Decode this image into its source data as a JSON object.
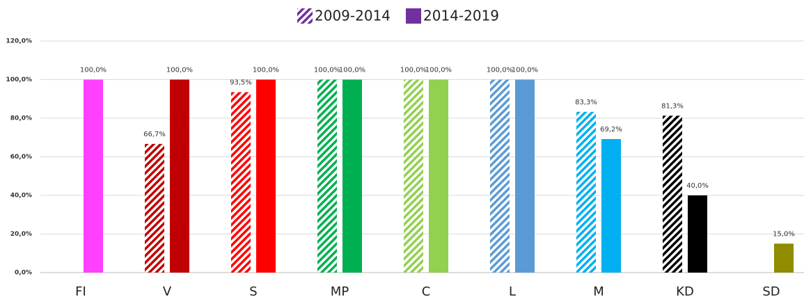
{
  "chart_data": {
    "type": "bar",
    "categories": [
      "FI",
      "V",
      "S",
      "MP",
      "C",
      "L",
      "M",
      "KD",
      "SD"
    ],
    "colors": [
      "#ff40ff",
      "#c00000",
      "#ff0000",
      "#00b050",
      "#92d050",
      "#5b9bd5",
      "#00b0f0",
      "#000000",
      "#8f8c00"
    ],
    "series": [
      {
        "name": "2009-2014",
        "color": "#7030a0",
        "hatched": true,
        "values": [
          null,
          66.7,
          93.5,
          100,
          100,
          100,
          83.3,
          81.3,
          null
        ],
        "value_labels": [
          null,
          "66,7%",
          "93,5%",
          "100,0%",
          "100,0%",
          "100,0%",
          "83,3%",
          "81,3%",
          null
        ]
      },
      {
        "name": "2014-2019",
        "color": "#7030a0",
        "hatched": false,
        "values": [
          100,
          100,
          100,
          100,
          100,
          100,
          69.2,
          40,
          15
        ],
        "value_labels": [
          "100,0%",
          "100,0%",
          "100,0%",
          "100,0%",
          "100,0%",
          "100,0%",
          "69,2%",
          "40,0%",
          "15,0%"
        ]
      }
    ],
    "ylim": [
      0,
      120
    ],
    "yticks": [
      {
        "value": 0,
        "label": "0,0%"
      },
      {
        "value": 20,
        "label": "20,0%"
      },
      {
        "value": 40,
        "label": "40,0%"
      },
      {
        "value": 60,
        "label": "60,0%"
      },
      {
        "value": 80,
        "label": "80,0%"
      },
      {
        "value": 100,
        "label": "100,0%"
      },
      {
        "value": 120,
        "label": "120,0%"
      }
    ],
    "grid": true,
    "legend": "top"
  }
}
